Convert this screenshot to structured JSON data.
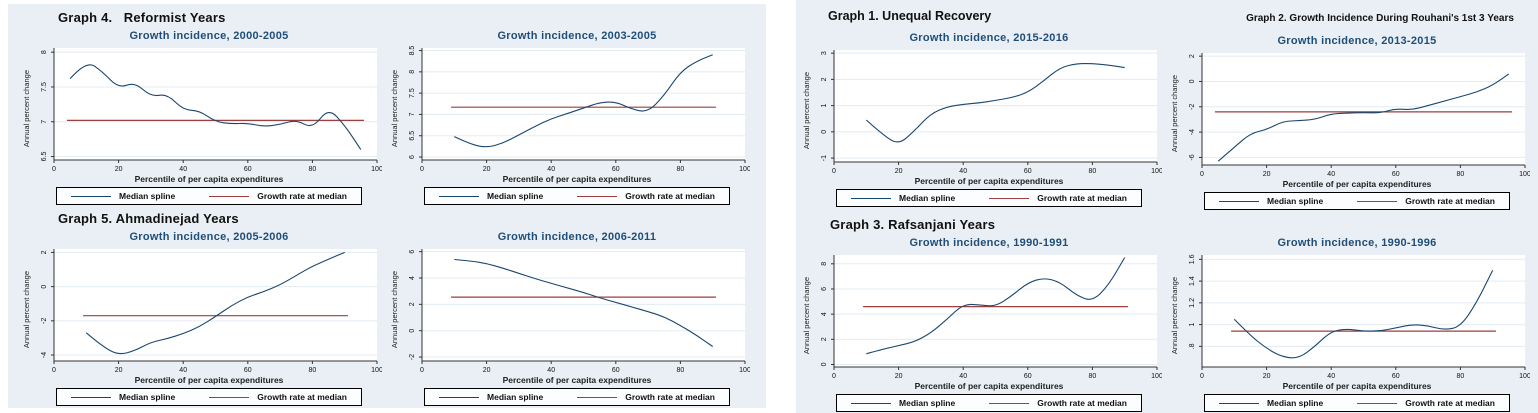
{
  "shared": {
    "xlabel": "Percentile of per capita expenditures",
    "ylabel": "Annual percent change",
    "legend": {
      "spline": "Median spline",
      "median": "Growth rate at median"
    },
    "xticks": [
      0,
      20,
      40,
      60,
      80,
      100
    ],
    "colors": {
      "panel_background": "#e9eff4",
      "plot_background": "#ffffff",
      "spline": "#1a476f",
      "median_line": "#9c3f3f",
      "chart_title": "#1f4e79",
      "gridline": "#e2ecf3",
      "axis": "#333333"
    }
  },
  "chart_data": [
    {
      "type": "line",
      "title": "Growth incidence, 2000-2005",
      "xlabel": "Percentile of per capita expenditures",
      "ylabel": "Annual percent change",
      "xlim": [
        0,
        100
      ],
      "ylim": [
        6.45,
        8.06
      ],
      "yticks": [
        6.5,
        7,
        7.5,
        8
      ],
      "ytick_labels": [
        "6.5",
        "7",
        "7.5",
        "8"
      ],
      "median_growth_rate": 7.02,
      "x": [
        5,
        10,
        15,
        20,
        25,
        30,
        35,
        40,
        45,
        50,
        55,
        60,
        65,
        70,
        75,
        80,
        85,
        90,
        95
      ],
      "y": [
        7.62,
        7.88,
        7.72,
        7.48,
        7.57,
        7.36,
        7.4,
        7.17,
        7.16,
        7.0,
        6.97,
        6.98,
        6.93,
        6.96,
        7.03,
        6.9,
        7.2,
        6.95,
        6.6
      ]
    },
    {
      "type": "line",
      "title": "Growth incidence, 2003-2005",
      "xlabel": "Percentile of per capita expenditures",
      "ylabel": "Annual percent change",
      "xlim": [
        0,
        100
      ],
      "ylim": [
        5.93,
        8.56
      ],
      "yticks": [
        6,
        6.5,
        7,
        7.5,
        8,
        8.5
      ],
      "ytick_labels": [
        "6",
        "6.5",
        "7",
        "7.5",
        "8",
        "8.5"
      ],
      "median_growth_rate": 7.17,
      "x": [
        10,
        15,
        20,
        25,
        30,
        35,
        40,
        45,
        50,
        55,
        60,
        65,
        70,
        75,
        80,
        85,
        90
      ],
      "y": [
        6.48,
        6.3,
        6.22,
        6.32,
        6.52,
        6.72,
        6.9,
        7.02,
        7.15,
        7.28,
        7.3,
        7.12,
        7.05,
        7.45,
        8.0,
        8.25,
        8.4
      ]
    },
    {
      "type": "line",
      "title": "Growth incidence, 2005-2006",
      "xlabel": "Percentile of per capita expenditures",
      "ylabel": "Annual percent change",
      "xlim": [
        0,
        100
      ],
      "ylim": [
        -4.35,
        2.2
      ],
      "yticks": [
        -4,
        -2,
        0,
        2
      ],
      "ytick_labels": [
        "-4",
        "-2",
        "0",
        "2"
      ],
      "median_growth_rate": -1.7,
      "x": [
        10,
        15,
        20,
        25,
        30,
        35,
        40,
        45,
        50,
        55,
        60,
        65,
        70,
        75,
        80,
        85,
        90
      ],
      "y": [
        -2.7,
        -3.5,
        -4.0,
        -3.75,
        -3.25,
        -3.05,
        -2.75,
        -2.35,
        -1.75,
        -1.1,
        -0.6,
        -0.3,
        0.1,
        0.65,
        1.2,
        1.6,
        2.0
      ]
    },
    {
      "type": "line",
      "title": "Growth incidence, 2006-2011",
      "xlabel": "Percentile of per capita expenditures",
      "ylabel": "Annual percent change",
      "xlim": [
        0,
        100
      ],
      "ylim": [
        -2.3,
        6.2
      ],
      "yticks": [
        -2,
        0,
        2,
        4,
        6
      ],
      "ytick_labels": [
        "-2",
        "0",
        "2",
        "4",
        "6"
      ],
      "median_growth_rate": 2.55,
      "x": [
        10,
        15,
        20,
        25,
        30,
        35,
        40,
        45,
        50,
        55,
        60,
        65,
        70,
        75,
        80,
        85,
        90
      ],
      "y": [
        5.4,
        5.3,
        5.1,
        4.75,
        4.35,
        3.95,
        3.6,
        3.25,
        2.9,
        2.5,
        2.15,
        1.8,
        1.45,
        1.05,
        0.4,
        -0.35,
        -1.2
      ]
    },
    {
      "type": "line",
      "title": "Growth incidence, 2015-2016",
      "xlabel": "Percentile of per capita expenditures",
      "ylabel": "Annual percent change",
      "xlim": [
        0,
        100
      ],
      "ylim": [
        -1.15,
        3.12
      ],
      "yticks": [
        -1,
        0,
        1,
        2,
        3
      ],
      "ytick_labels": [
        "-1",
        "0",
        "1",
        "2",
        "3"
      ],
      "median_growth_rate": null,
      "x": [
        10,
        15,
        20,
        25,
        30,
        35,
        40,
        45,
        50,
        55,
        60,
        65,
        70,
        75,
        80,
        85,
        90
      ],
      "y": [
        0.45,
        -0.1,
        -0.5,
        0.05,
        0.7,
        0.95,
        1.05,
        1.1,
        1.2,
        1.3,
        1.5,
        1.95,
        2.45,
        2.6,
        2.6,
        2.55,
        2.45
      ]
    },
    {
      "type": "line",
      "title": "Growth incidence, 2013-2015",
      "xlabel": "Percentile of per capita expenditures",
      "ylabel": "Annual percent change",
      "xlim": [
        0,
        100
      ],
      "ylim": [
        -6.6,
        2.25
      ],
      "yticks": [
        -6,
        -4,
        -2,
        0,
        2
      ],
      "ytick_labels": [
        "-6",
        "-4",
        "-2",
        "0",
        "2"
      ],
      "median_growth_rate": -2.4,
      "x": [
        5,
        10,
        15,
        20,
        25,
        30,
        35,
        40,
        45,
        50,
        55,
        60,
        65,
        70,
        75,
        80,
        85,
        90,
        95
      ],
      "y": [
        -6.3,
        -5.2,
        -4.1,
        -3.8,
        -3.15,
        -3.1,
        -3.0,
        -2.55,
        -2.5,
        -2.45,
        -2.5,
        -2.15,
        -2.25,
        -1.9,
        -1.55,
        -1.2,
        -0.85,
        -0.3,
        0.6
      ]
    },
    {
      "type": "line",
      "title": "Growth incidence, 1990-1991",
      "xlabel": "Percentile of per capita expenditures",
      "ylabel": "Annual percent change",
      "xlim": [
        0,
        100
      ],
      "ylim": [
        -0.2,
        8.7
      ],
      "yticks": [
        0,
        2,
        4,
        6,
        8
      ],
      "ytick_labels": [
        "0",
        "2",
        "4",
        "6",
        "8"
      ],
      "median_growth_rate": 4.6,
      "x": [
        10,
        15,
        20,
        25,
        30,
        35,
        40,
        45,
        50,
        55,
        60,
        65,
        70,
        75,
        80,
        85,
        90
      ],
      "y": [
        0.85,
        1.2,
        1.5,
        1.8,
        2.5,
        3.6,
        4.8,
        4.75,
        4.6,
        5.45,
        6.5,
        6.9,
        6.55,
        5.5,
        5.0,
        6.3,
        8.5
      ]
    },
    {
      "type": "line",
      "title": "Growth incidence, 1990-1996",
      "xlabel": "Percentile of per capita expenditures",
      "ylabel": "Annual percent change",
      "xlim": [
        0,
        100
      ],
      "ylim": [
        0.61,
        1.64
      ],
      "yticks": [
        0.8,
        1.0,
        1.2,
        1.4,
        1.6
      ],
      "ytick_labels": [
        ".8",
        "1",
        "1.2",
        "1.4",
        "1.6"
      ],
      "median_growth_rate": 0.94,
      "x": [
        10,
        15,
        20,
        25,
        30,
        35,
        40,
        45,
        50,
        55,
        60,
        65,
        70,
        75,
        80,
        85,
        90
      ],
      "y": [
        1.05,
        0.9,
        0.78,
        0.7,
        0.69,
        0.8,
        0.94,
        0.96,
        0.94,
        0.94,
        0.97,
        1.0,
        0.99,
        0.95,
        0.98,
        1.2,
        1.5
      ]
    }
  ],
  "layout": {
    "panels": [
      {
        "name": "left",
        "rows": [
          {
            "heading": "Graph 4.   Reformist Years",
            "charts": [
              {
                "chart": 0
              },
              {
                "chart": 1
              }
            ]
          },
          {
            "heading": "Graph 5. Ahmadinejad Years",
            "charts": [
              {
                "chart": 2
              },
              {
                "chart": 3
              }
            ]
          }
        ]
      },
      {
        "name": "right",
        "rows": [
          {
            "charts": [
              {
                "chart": 4,
                "heading": "Graph 1. Unequal Recovery"
              },
              {
                "chart": 5,
                "heading": "Graph 2. Growth Incidence During Rouhani's 1st 3 Years",
                "small_heading": true
              }
            ]
          },
          {
            "heading": "Graph 3. Rafsanjani Years",
            "charts": [
              {
                "chart": 6
              },
              {
                "chart": 7
              }
            ]
          }
        ]
      }
    ]
  }
}
